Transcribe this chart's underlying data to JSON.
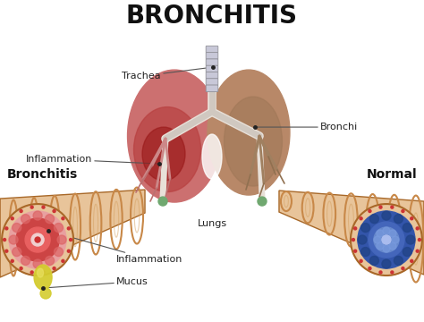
{
  "title": "BRONCHITIS",
  "title_fontsize": 20,
  "title_fontweight": "bold",
  "title_color": "#111111",
  "background_color": "#ffffff",
  "labels": {
    "trachea": "Trachea",
    "bronchi": "Bronchi",
    "inflammation_lung": "Inflammation",
    "lungs": "Lungs",
    "bronchitis": "Bronchitis",
    "normal": "Normal",
    "inflammation_tube": "Inflammation",
    "mucus": "Mucus"
  },
  "label_fontsize": 8,
  "label_bold_fontsize": 10,
  "lung_left_color_top": "#c87878",
  "lung_left_color_bot": "#b85050",
  "lung_right_color": "#b8927a",
  "lung_inflamed_color": "#a02020",
  "trachea_ring_color": "#c8c8d8",
  "trachea_ring_edge": "#909098",
  "tube_skin_color": "#e8c49a",
  "tube_ring_color": "#c88848",
  "tube_edge_color": "#a86828",
  "mucus_color": "#d4cc30",
  "green_highlight": "#a8d8b8",
  "annotation_line_color": "#555555",
  "bronchi_white": "#e8e0d8",
  "dot_color": "#222222"
}
